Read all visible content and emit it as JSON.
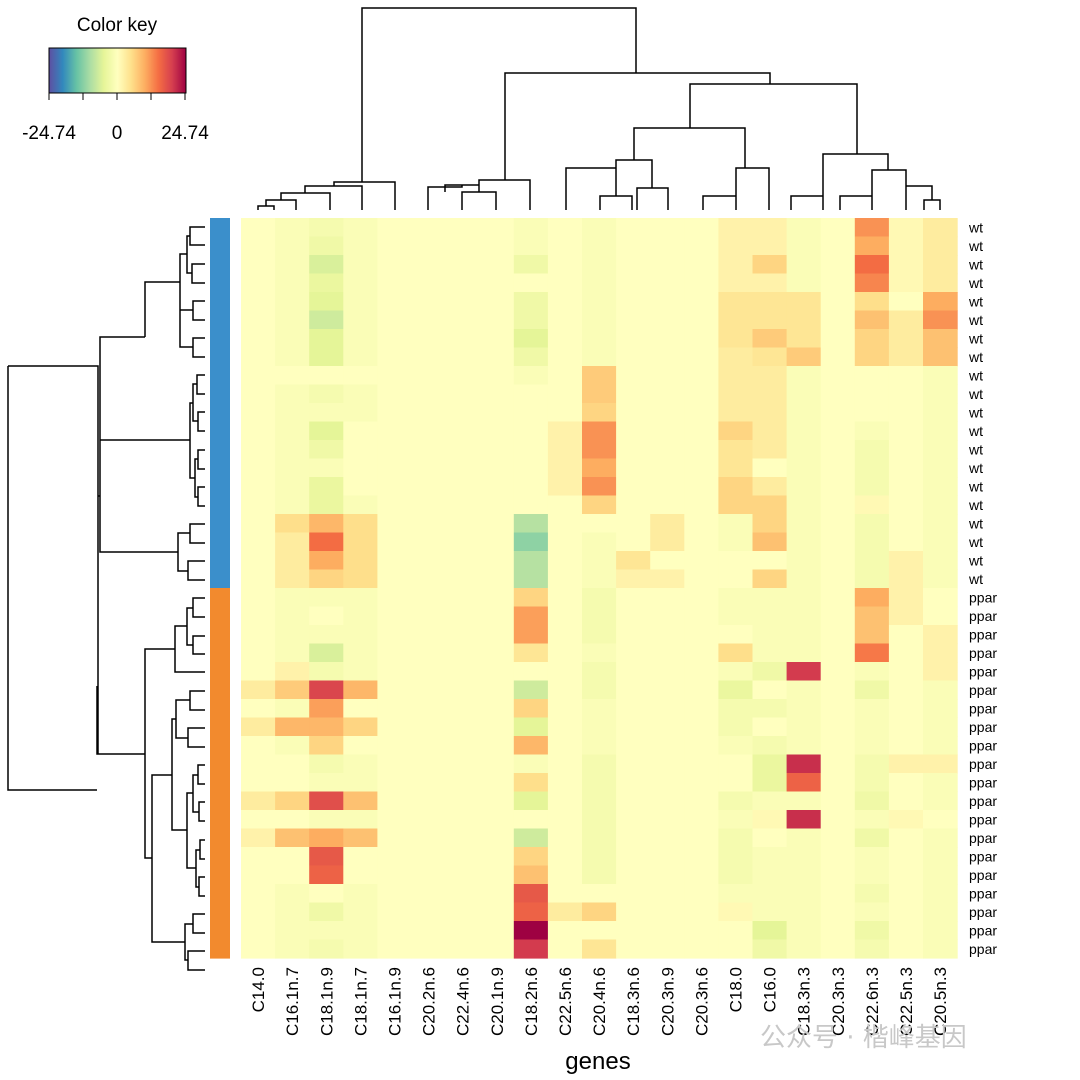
{
  "chart_data": {
    "type": "heatmap",
    "title": "",
    "xlabel": "genes",
    "ylabel": "",
    "legend": {
      "title": "Color key",
      "min_label": "-24.74",
      "mid_label": "0",
      "max_label": "24.74",
      "range": [
        -24.74,
        24.74
      ]
    },
    "palette": [
      "#5E4FA2",
      "#3288BD",
      "#66C2A5",
      "#ABDDA4",
      "#E6F598",
      "#FFFFBF",
      "#FEE08B",
      "#FDAE61",
      "#F46D43",
      "#D53E4F",
      "#9E0142"
    ],
    "group_colors": {
      "wt": "#3B8FCB",
      "ppar": "#F28A2E"
    },
    "columns": [
      "C14.0",
      "C16.1n.7",
      "C18.1n.9",
      "C18.1n.7",
      "C16.1n.9",
      "C20.2n.6",
      "C22.4n.6",
      "C20.1n.9",
      "C18.2n.6",
      "C22.5n.6",
      "C20.4n.6",
      "C18.3n.6",
      "C20.3n.9",
      "C20.3n.6",
      "C18.0",
      "C16.0",
      "C18.3n.3",
      "C20.3n.3",
      "C22.6n.3",
      "C22.5n.3",
      "C20.5n.3"
    ],
    "rows": [
      "wt",
      "wt",
      "wt",
      "wt",
      "wt",
      "wt",
      "wt",
      "wt",
      "wt",
      "wt",
      "wt",
      "wt",
      "wt",
      "wt",
      "wt",
      "wt",
      "wt",
      "wt",
      "wt",
      "wt",
      "ppar",
      "ppar",
      "ppar",
      "ppar",
      "ppar",
      "ppar",
      "ppar",
      "ppar",
      "ppar",
      "ppar",
      "ppar",
      "ppar",
      "ppar",
      "ppar",
      "ppar",
      "ppar",
      "ppar",
      "ppar",
      "ppar",
      "ppar"
    ],
    "values": [
      [
        0,
        -1,
        -2,
        -1,
        0,
        0,
        0,
        0,
        -1,
        0,
        -1,
        0,
        0,
        0,
        2,
        2,
        -1,
        0,
        12,
        1,
        3
      ],
      [
        0,
        -1,
        -3,
        -1,
        0,
        0,
        0,
        0,
        -1,
        0,
        -1,
        0,
        0,
        0,
        2,
        2,
        -1,
        0,
        10,
        1,
        3
      ],
      [
        0,
        -1,
        -6,
        -1,
        0,
        0,
        0,
        0,
        -3,
        0,
        -1,
        0,
        0,
        0,
        2,
        6,
        -1,
        0,
        15,
        1,
        3
      ],
      [
        0,
        -1,
        -4,
        -1,
        0,
        0,
        0,
        0,
        0,
        0,
        -1,
        0,
        0,
        0,
        2,
        2,
        -1,
        0,
        13,
        1,
        3
      ],
      [
        0,
        -1,
        -5,
        -1,
        0,
        0,
        0,
        0,
        -3,
        0,
        -1,
        0,
        0,
        0,
        4,
        4,
        4,
        0,
        5,
        0,
        10
      ],
      [
        0,
        -1,
        -7,
        -1,
        0,
        0,
        0,
        0,
        -3,
        0,
        -1,
        0,
        0,
        0,
        4,
        4,
        4,
        0,
        8,
        3,
        12
      ],
      [
        0,
        -1,
        -5,
        -1,
        0,
        0,
        0,
        0,
        -5,
        0,
        -1,
        0,
        0,
        0,
        4,
        7,
        4,
        0,
        6,
        3,
        8
      ],
      [
        0,
        -1,
        -5,
        -1,
        0,
        0,
        0,
        0,
        -3,
        0,
        -1,
        0,
        0,
        0,
        3,
        4,
        7,
        0,
        6,
        3,
        8
      ],
      [
        0,
        0,
        0,
        0,
        0,
        0,
        0,
        0,
        -1,
        0,
        7,
        0,
        0,
        0,
        3,
        3,
        -1,
        0,
        0,
        0,
        -1
      ],
      [
        0,
        -1,
        -2,
        -1,
        0,
        0,
        0,
        0,
        0,
        0,
        7,
        0,
        0,
        0,
        3,
        3,
        -1,
        0,
        0,
        0,
        -1
      ],
      [
        0,
        -1,
        -1,
        -1,
        0,
        0,
        0,
        0,
        0,
        0,
        6,
        0,
        0,
        0,
        3,
        3,
        -1,
        0,
        0,
        0,
        -1
      ],
      [
        0,
        -1,
        -5,
        0,
        0,
        0,
        0,
        0,
        0,
        2,
        12,
        0,
        0,
        0,
        6,
        3,
        -1,
        0,
        -1,
        0,
        -1
      ],
      [
        0,
        -1,
        -3,
        0,
        0,
        0,
        0,
        0,
        0,
        2,
        12,
        0,
        0,
        0,
        4,
        3,
        -1,
        0,
        -2,
        0,
        -1
      ],
      [
        0,
        -1,
        -1,
        0,
        0,
        0,
        0,
        0,
        0,
        2,
        10,
        0,
        0,
        0,
        4,
        0,
        -1,
        0,
        -2,
        0,
        -1
      ],
      [
        0,
        -1,
        -4,
        0,
        0,
        0,
        0,
        0,
        0,
        2,
        12,
        0,
        0,
        0,
        6,
        3,
        -1,
        0,
        -2,
        0,
        -1
      ],
      [
        0,
        -1,
        -4,
        -1,
        0,
        0,
        0,
        0,
        0,
        0,
        6,
        0,
        0,
        0,
        6,
        6,
        -1,
        0,
        1,
        0,
        -1
      ],
      [
        0,
        5,
        9,
        5,
        0,
        0,
        0,
        0,
        -9,
        0,
        0,
        0,
        3,
        0,
        -1,
        6,
        -1,
        0,
        -2,
        0,
        -1
      ],
      [
        0,
        3,
        15,
        5,
        0,
        0,
        0,
        0,
        -12,
        0,
        -1,
        0,
        3,
        0,
        -1,
        8,
        -1,
        0,
        -2,
        0,
        -1
      ],
      [
        0,
        3,
        10,
        5,
        0,
        0,
        0,
        0,
        -9,
        0,
        -1,
        4,
        0,
        0,
        0,
        0,
        -1,
        0,
        -2,
        2,
        -1
      ],
      [
        0,
        3,
        6,
        5,
        0,
        0,
        0,
        0,
        -9,
        0,
        -1,
        2,
        2,
        0,
        0,
        6,
        -1,
        0,
        -2,
        2,
        -1
      ],
      [
        0,
        -1,
        -1,
        -1,
        0,
        0,
        0,
        0,
        6,
        0,
        -2,
        0,
        0,
        0,
        -1,
        -1,
        -1,
        0,
        10,
        2,
        0
      ],
      [
        0,
        -1,
        0,
        -1,
        0,
        0,
        0,
        0,
        11,
        0,
        -2,
        0,
        0,
        0,
        -1,
        -1,
        -1,
        0,
        8,
        2,
        0
      ],
      [
        0,
        -1,
        -1,
        -1,
        0,
        0,
        0,
        0,
        11,
        0,
        -2,
        0,
        0,
        0,
        0,
        -1,
        -1,
        0,
        8,
        0,
        2
      ],
      [
        0,
        -1,
        -6,
        -1,
        0,
        0,
        0,
        0,
        4,
        0,
        -1,
        0,
        0,
        0,
        5,
        -1,
        -1,
        0,
        14,
        0,
        2
      ],
      [
        0,
        2,
        -2,
        -1,
        0,
        0,
        0,
        0,
        0,
        0,
        -2,
        0,
        0,
        0,
        -1,
        -3,
        20,
        0,
        -1,
        0,
        2
      ],
      [
        3,
        7,
        19,
        9,
        0,
        0,
        0,
        0,
        -7,
        0,
        -2,
        0,
        0,
        0,
        -4,
        0,
        -1,
        0,
        -3,
        0,
        -1
      ],
      [
        0,
        -1,
        11,
        0,
        0,
        0,
        0,
        0,
        6,
        0,
        -1,
        0,
        0,
        0,
        -2,
        -2,
        -1,
        0,
        -1,
        0,
        -1
      ],
      [
        3,
        9,
        9,
        6,
        0,
        0,
        0,
        0,
        -5,
        0,
        -1,
        0,
        0,
        0,
        -2,
        0,
        -1,
        0,
        -1,
        0,
        -1
      ],
      [
        0,
        -1,
        6,
        0,
        0,
        0,
        0,
        0,
        9,
        0,
        -1,
        0,
        0,
        0,
        -1,
        -2,
        -1,
        0,
        -1,
        0,
        -1
      ],
      [
        0,
        0,
        -2,
        -1,
        0,
        0,
        0,
        0,
        -1,
        0,
        -2,
        0,
        0,
        0,
        0,
        -4,
        21,
        0,
        -2,
        2,
        2
      ],
      [
        0,
        0,
        -1,
        -1,
        0,
        0,
        0,
        0,
        5,
        0,
        -2,
        0,
        0,
        0,
        0,
        -4,
        16,
        0,
        -2,
        0,
        -1
      ],
      [
        3,
        6,
        18,
        8,
        0,
        0,
        0,
        0,
        -5,
        0,
        -2,
        0,
        0,
        0,
        -2,
        -1,
        -1,
        0,
        -3,
        0,
        -1
      ],
      [
        0,
        0,
        -1,
        -1,
        0,
        0,
        0,
        0,
        0,
        0,
        -2,
        0,
        0,
        0,
        -1,
        1,
        21,
        0,
        -1,
        1,
        0
      ],
      [
        2,
        8,
        10,
        8,
        0,
        0,
        0,
        0,
        -7,
        0,
        -2,
        0,
        0,
        0,
        -2,
        0,
        -1,
        0,
        -3,
        0,
        -1
      ],
      [
        0,
        0,
        17,
        0,
        0,
        0,
        0,
        0,
        6,
        0,
        -2,
        0,
        0,
        0,
        -2,
        -1,
        -1,
        0,
        -1,
        0,
        -1
      ],
      [
        0,
        0,
        16,
        0,
        0,
        0,
        0,
        0,
        8,
        0,
        -2,
        0,
        0,
        0,
        -2,
        -1,
        -1,
        0,
        -1,
        0,
        -1
      ],
      [
        0,
        -1,
        0,
        -1,
        0,
        0,
        0,
        0,
        17,
        0,
        0,
        0,
        0,
        0,
        -1,
        -1,
        -1,
        0,
        -2,
        0,
        -1
      ],
      [
        0,
        -1,
        -3,
        -1,
        0,
        0,
        0,
        0,
        16,
        3,
        6,
        0,
        0,
        0,
        1,
        -1,
        -1,
        0,
        -1,
        0,
        -1
      ],
      [
        0,
        -1,
        -1,
        -1,
        0,
        0,
        0,
        0,
        25,
        0,
        0,
        0,
        0,
        0,
        0,
        -5,
        -1,
        0,
        -3,
        0,
        -1
      ],
      [
        0,
        -1,
        -2,
        -1,
        0,
        0,
        0,
        0,
        20,
        0,
        4,
        0,
        0,
        0,
        0,
        -3,
        -1,
        0,
        -2,
        0,
        -1
      ]
    ]
  },
  "watermark": "公众号 · 楷峰基因"
}
